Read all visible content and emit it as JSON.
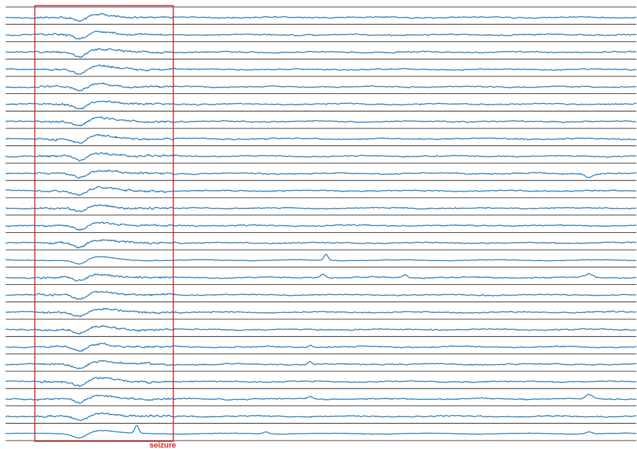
{
  "chart_data": {
    "type": "line",
    "title": "",
    "xlabel": "",
    "ylabel": "",
    "channel_count": 25,
    "grid": false,
    "legend": "none",
    "annotation": {
      "label": "seizure",
      "start_fraction": 0.047,
      "end_fraction": 0.272
    },
    "colors": {
      "trace": "#2b7bb9",
      "annotation": "#d62728",
      "separator": "#000000"
    }
  }
}
